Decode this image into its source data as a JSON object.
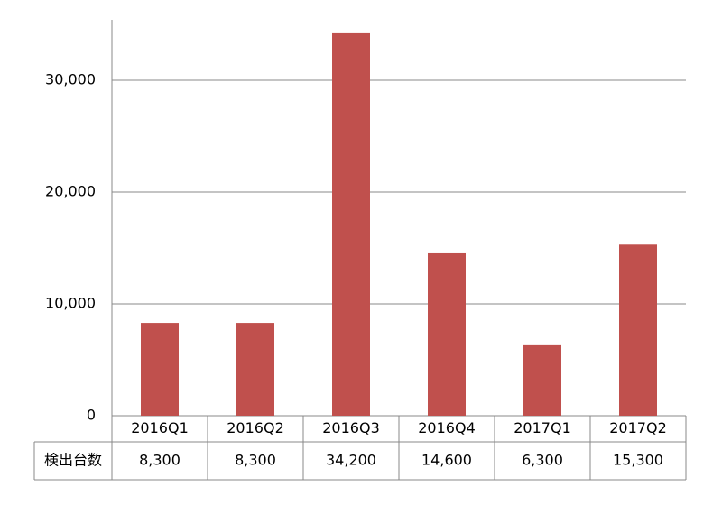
{
  "chart_data": {
    "type": "bar",
    "categories": [
      "2016Q1",
      "2016Q2",
      "2016Q3",
      "2016Q4",
      "2017Q1",
      "2017Q2"
    ],
    "series": [
      {
        "name": "検出台数",
        "color": "#c0504d",
        "values": [
          8300,
          8300,
          34200,
          14600,
          6300,
          15300
        ],
        "value_labels": [
          "8,300",
          "8,300",
          "34,200",
          "14,600",
          "6,300",
          "15,300"
        ]
      }
    ],
    "ylim": [
      0,
      35000
    ],
    "yticks": [
      0,
      {
        "value": 10000,
        "label": "10,000"
      },
      {
        "value": 20000,
        "label": "20,000"
      },
      {
        "value": 30000,
        "label": "30,000"
      }
    ],
    "grid": true
  }
}
